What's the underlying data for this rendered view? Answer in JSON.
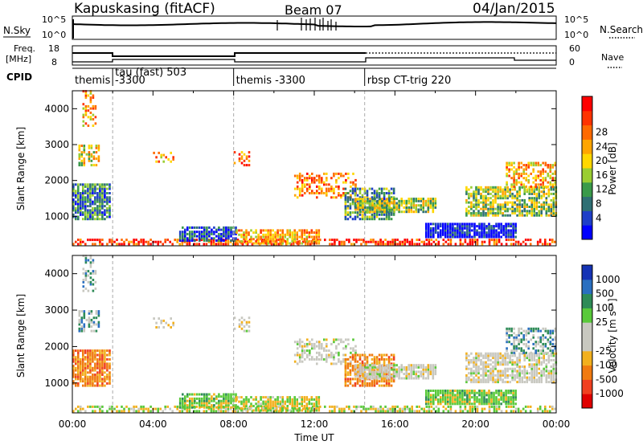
{
  "header": {
    "radar": "Kapuskasing (fitACF)",
    "beam": "Beam 07",
    "date": "04/Jan/2015"
  },
  "noise_panel": {
    "left_label": "N.Sky",
    "right_label": "N.Search",
    "y_ticks_left": [
      "10^5",
      "10^0"
    ],
    "y_ticks_right": [
      "10^5",
      "10^0"
    ]
  },
  "freq_panel": {
    "left_label_1": "Freq.",
    "left_label_2": "[MHz]",
    "right_label": "Nave",
    "y_ticks_left": [
      "18",
      "8"
    ],
    "y_ticks_right": [
      "60",
      "0"
    ]
  },
  "cpid_panel": {
    "label": "CPID",
    "modes": [
      {
        "name": "themis",
        "extra": "-3300",
        "start_hour": 0
      },
      {
        "name": "tau (fast) 503",
        "extra": "",
        "start_hour": 2
      },
      {
        "name": "themis -3300",
        "extra": "",
        "start_hour": 8
      },
      {
        "name": "rbsp CT-trig 220",
        "extra": "",
        "start_hour": 14.5
      }
    ]
  },
  "chart_data": [
    {
      "type": "heatmap",
      "title": "Power",
      "ylabel": "Slant Range [km]",
      "xlabel": "",
      "x_range_hours": [
        0,
        24
      ],
      "ylim": [
        180,
        4500
      ],
      "y_ticks": [
        1000,
        2000,
        3000,
        4000
      ],
      "colorbar": {
        "label": "Power [dB]",
        "ticks": [
          "4",
          "8",
          "12",
          "16",
          "20",
          "24",
          "28"
        ],
        "colors": [
          "#0000ff",
          "#1e3ec8",
          "#2f6f74",
          "#3a9a4a",
          "#9acd32",
          "#ffd700",
          "#ffa500",
          "#ff6a00",
          "#ff3300",
          "#ff0000"
        ]
      }
    },
    {
      "type": "heatmap",
      "title": "Velocity",
      "ylabel": "Slant Range [km]",
      "xlabel": "Time UT",
      "x_range_hours": [
        0,
        24
      ],
      "ylim": [
        180,
        4500
      ],
      "y_ticks": [
        1000,
        2000,
        3000,
        4000
      ],
      "x_ticks": [
        "00:00",
        "04:00",
        "08:00",
        "12:00",
        "16:00",
        "20:00",
        "00:00"
      ],
      "colorbar": {
        "label": "Velocity [m s⁻¹]",
        "ticks": [
          "1000",
          "500",
          "100",
          "25",
          "-25",
          "-100",
          "-500",
          "-1000"
        ],
        "colors": [
          "#1533b5",
          "#2a6fc0",
          "#2e8b57",
          "#59c93a",
          "#c8c8c0",
          "#c8c8c0",
          "#f2b01e",
          "#f07a10",
          "#f04020",
          "#e00000"
        ]
      }
    }
  ]
}
